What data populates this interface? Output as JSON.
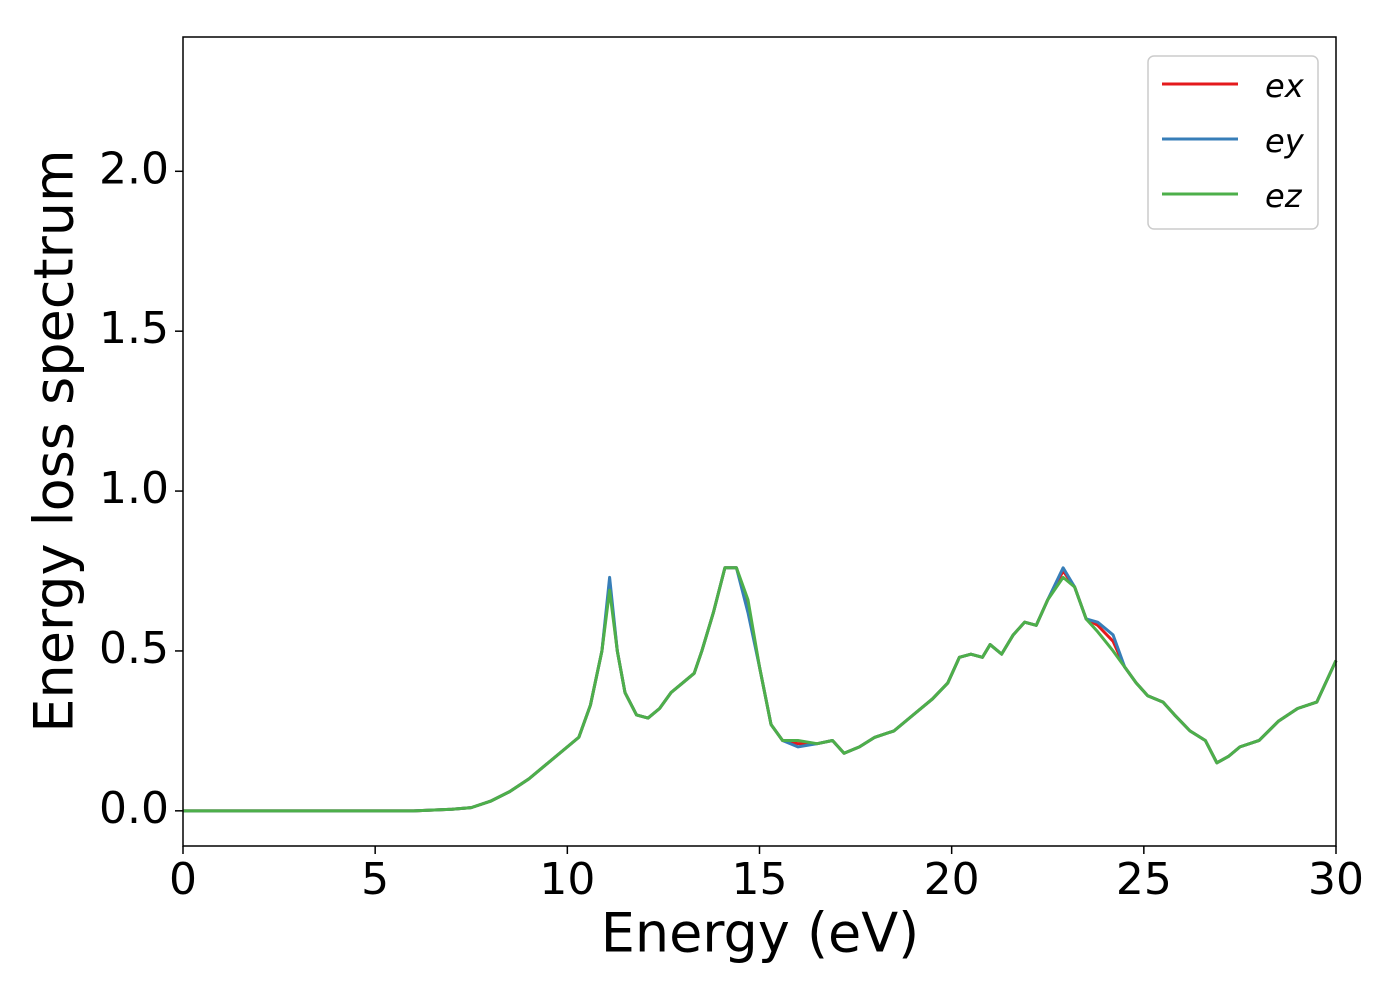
{
  "chart_data": {
    "type": "line",
    "x_label": "Energy (eV)",
    "y_label": "Energy loss spectrum",
    "x": [
      0,
      2,
      4,
      6,
      7,
      7.5,
      8,
      8.5,
      9,
      9.5,
      10,
      10.3,
      10.6,
      10.9,
      11.1,
      11.3,
      11.5,
      11.8,
      12.1,
      12.4,
      12.7,
      13,
      13.3,
      13.5,
      13.8,
      14.1,
      14.4,
      14.7,
      15,
      15.3,
      15.6,
      16,
      16.5,
      16.9,
      17.2,
      17.6,
      18,
      18.5,
      19,
      19.5,
      19.9,
      20.2,
      20.5,
      20.8,
      21,
      21.3,
      21.6,
      21.9,
      22.2,
      22.5,
      22.9,
      23.2,
      23.5,
      23.8,
      24.2,
      24.5,
      24.8,
      25.1,
      25.5,
      25.8,
      26.2,
      26.6,
      26.9,
      27.2,
      27.5,
      28,
      28.5,
      29,
      29.5,
      30
    ],
    "series": [
      {
        "name": "ex",
        "color": "#e41a1c",
        "values": [
          0,
          0,
          0,
          0,
          0.005,
          0.01,
          0.03,
          0.06,
          0.1,
          0.15,
          0.2,
          0.23,
          0.33,
          0.5,
          0.71,
          0.5,
          0.37,
          0.3,
          0.29,
          0.32,
          0.37,
          0.4,
          0.43,
          0.5,
          0.62,
          0.76,
          0.76,
          0.64,
          0.45,
          0.27,
          0.22,
          0.21,
          0.21,
          0.22,
          0.18,
          0.2,
          0.23,
          0.25,
          0.3,
          0.35,
          0.4,
          0.48,
          0.49,
          0.48,
          0.52,
          0.49,
          0.55,
          0.59,
          0.58,
          0.66,
          0.75,
          0.7,
          0.6,
          0.58,
          0.53,
          0.45,
          0.4,
          0.36,
          0.34,
          0.3,
          0.25,
          0.22,
          0.15,
          0.17,
          0.2,
          0.22,
          0.28,
          0.32,
          0.34,
          0.47
        ]
      },
      {
        "name": "ey",
        "color": "#377eb8",
        "values": [
          0,
          0,
          0,
          0,
          0.005,
          0.01,
          0.03,
          0.06,
          0.1,
          0.15,
          0.2,
          0.23,
          0.33,
          0.5,
          0.73,
          0.5,
          0.37,
          0.3,
          0.29,
          0.32,
          0.37,
          0.4,
          0.43,
          0.5,
          0.62,
          0.76,
          0.76,
          0.62,
          0.45,
          0.27,
          0.22,
          0.2,
          0.21,
          0.22,
          0.18,
          0.2,
          0.23,
          0.25,
          0.3,
          0.35,
          0.4,
          0.48,
          0.49,
          0.48,
          0.52,
          0.49,
          0.55,
          0.59,
          0.58,
          0.66,
          0.76,
          0.7,
          0.6,
          0.59,
          0.55,
          0.45,
          0.4,
          0.36,
          0.34,
          0.3,
          0.25,
          0.22,
          0.15,
          0.17,
          0.2,
          0.22,
          0.28,
          0.32,
          0.34,
          0.47
        ]
      },
      {
        "name": "ez",
        "color": "#4daf4a",
        "values": [
          0,
          0,
          0,
          0,
          0.005,
          0.01,
          0.03,
          0.06,
          0.1,
          0.15,
          0.2,
          0.23,
          0.33,
          0.5,
          0.69,
          0.5,
          0.37,
          0.3,
          0.29,
          0.32,
          0.37,
          0.4,
          0.43,
          0.5,
          0.62,
          0.76,
          0.76,
          0.66,
          0.45,
          0.27,
          0.22,
          0.22,
          0.21,
          0.22,
          0.18,
          0.2,
          0.23,
          0.25,
          0.3,
          0.35,
          0.4,
          0.48,
          0.49,
          0.48,
          0.52,
          0.49,
          0.55,
          0.59,
          0.58,
          0.66,
          0.73,
          0.7,
          0.6,
          0.56,
          0.5,
          0.45,
          0.4,
          0.36,
          0.34,
          0.3,
          0.25,
          0.22,
          0.15,
          0.17,
          0.2,
          0.22,
          0.28,
          0.32,
          0.34,
          0.47
        ]
      }
    ],
    "xlim": [
      0,
      30
    ],
    "xticks": [
      0,
      5,
      10,
      15,
      20,
      25,
      30
    ],
    "ylim": [
      -0.11,
      2.42
    ],
    "yticks": [
      {
        "value": 0,
        "label": "0.0"
      },
      0.5,
      {
        "value": 1,
        "label": "1.0"
      },
      1.5,
      {
        "value": 2,
        "label": "2.0"
      }
    ],
    "grid": false,
    "legend": "upper right"
  }
}
